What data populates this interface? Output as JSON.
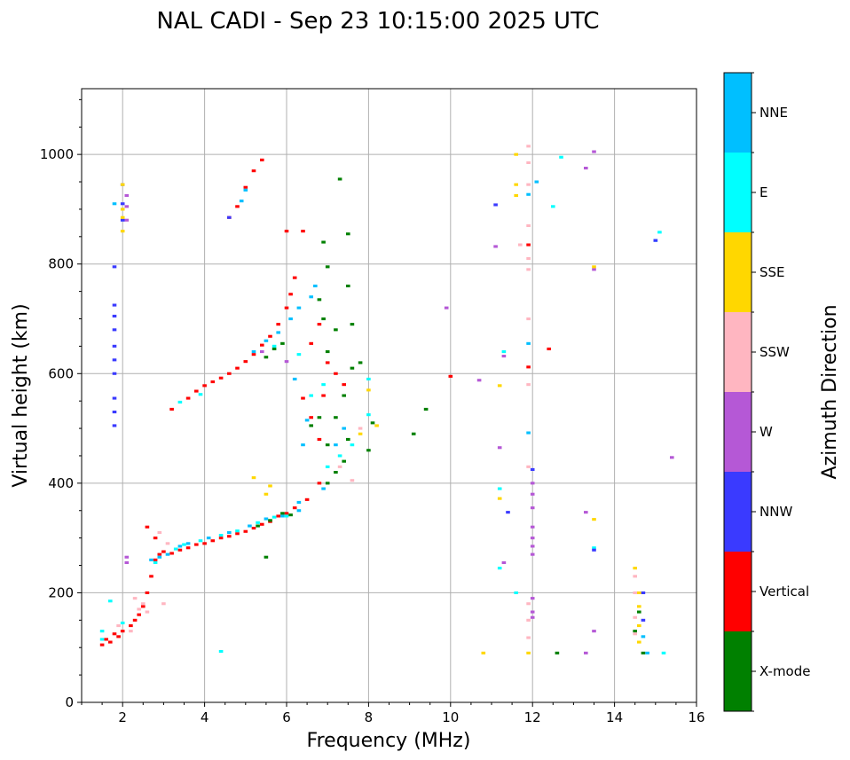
{
  "chart_data": {
    "type": "scatter",
    "title": "NAL CADI - Sep 23 10:15:00 2025 UTC",
    "xlabel": "Frequency (MHz)",
    "ylabel": "Virtual height (km)",
    "xlim": [
      1,
      16
    ],
    "ylim": [
      0,
      1120
    ],
    "xticks": [
      2,
      4,
      6,
      8,
      10,
      12,
      14,
      16
    ],
    "xtick_labels": [
      "2",
      "4",
      "6",
      "8",
      "10",
      "12",
      "14",
      "16"
    ],
    "yticks": [
      0,
      200,
      400,
      600,
      800,
      1000
    ],
    "ytick_labels": [
      "0",
      "200",
      "400",
      "600",
      "800",
      "1000"
    ],
    "grid": true,
    "cell_size": {
      "df": 0.1,
      "dh": 5
    },
    "colorbar": {
      "title": "Azimuth Direction",
      "categories": [
        {
          "label": "X-mode",
          "color": "#008000"
        },
        {
          "label": "Vertical",
          "color": "#ff0000"
        },
        {
          "label": "NNW",
          "color": "#3a3aff"
        },
        {
          "label": "W",
          "color": "#b558d6"
        },
        {
          "label": "SSW",
          "color": "#ffb6c1"
        },
        {
          "label": "SSE",
          "color": "#ffd700"
        },
        {
          "label": "E",
          "color": "#00ffff"
        },
        {
          "label": "NNE",
          "color": "#00bfff"
        }
      ]
    },
    "series": [
      {
        "name": "Vertical",
        "points": [
          [
            1.5,
            105
          ],
          [
            1.6,
            115
          ],
          [
            1.7,
            110
          ],
          [
            1.8,
            125
          ],
          [
            1.9,
            120
          ],
          [
            2.0,
            130
          ],
          [
            2.2,
            140
          ],
          [
            2.3,
            150
          ],
          [
            2.4,
            160
          ],
          [
            2.5,
            175
          ],
          [
            2.6,
            200
          ],
          [
            2.7,
            230
          ],
          [
            2.8,
            260
          ],
          [
            2.9,
            270
          ],
          [
            3.0,
            275
          ],
          [
            3.2,
            272
          ],
          [
            3.4,
            278
          ],
          [
            3.6,
            282
          ],
          [
            3.8,
            288
          ],
          [
            4.0,
            290
          ],
          [
            4.2,
            295
          ],
          [
            4.4,
            300
          ],
          [
            4.6,
            303
          ],
          [
            4.8,
            308
          ],
          [
            5.0,
            312
          ],
          [
            5.2,
            318
          ],
          [
            5.4,
            325
          ],
          [
            5.6,
            330
          ],
          [
            5.8,
            340
          ],
          [
            6.0,
            345
          ],
          [
            6.2,
            355
          ],
          [
            6.5,
            370
          ],
          [
            6.8,
            400
          ],
          [
            3.2,
            535
          ],
          [
            3.6,
            555
          ],
          [
            3.8,
            568
          ],
          [
            4.0,
            578
          ],
          [
            4.2,
            585
          ],
          [
            4.4,
            592
          ],
          [
            4.6,
            600
          ],
          [
            4.8,
            610
          ],
          [
            5.0,
            622
          ],
          [
            5.2,
            635
          ],
          [
            5.4,
            652
          ],
          [
            5.6,
            668
          ],
          [
            5.8,
            690
          ],
          [
            6.0,
            720
          ],
          [
            6.1,
            745
          ],
          [
            6.2,
            775
          ],
          [
            6.0,
            860
          ],
          [
            6.4,
            860
          ],
          [
            6.6,
            655
          ],
          [
            6.8,
            690
          ],
          [
            6.9,
            560
          ],
          [
            7.0,
            620
          ],
          [
            7.2,
            600
          ],
          [
            7.4,
            580
          ],
          [
            10.0,
            595
          ],
          [
            11.9,
            612
          ],
          [
            12.4,
            645
          ],
          [
            11.9,
            835
          ],
          [
            5.4,
            990
          ],
          [
            5.2,
            970
          ],
          [
            5.0,
            940
          ],
          [
            4.8,
            905
          ],
          [
            4.6,
            885
          ],
          [
            6.6,
            520
          ],
          [
            6.4,
            555
          ],
          [
            6.8,
            480
          ],
          [
            2.6,
            320
          ],
          [
            2.8,
            300
          ]
        ]
      },
      {
        "name": "NNE",
        "points": [
          [
            2.7,
            260
          ],
          [
            2.9,
            265
          ],
          [
            3.1,
            270
          ],
          [
            3.4,
            285
          ],
          [
            3.6,
            290
          ],
          [
            4.1,
            300
          ],
          [
            4.6,
            310
          ],
          [
            5.1,
            322
          ],
          [
            5.5,
            335
          ],
          [
            5.9,
            340
          ],
          [
            6.3,
            350
          ],
          [
            6.3,
            365
          ],
          [
            5.2,
            640
          ],
          [
            5.5,
            660
          ],
          [
            5.8,
            675
          ],
          [
            6.1,
            700
          ],
          [
            6.3,
            720
          ],
          [
            6.6,
            740
          ],
          [
            6.7,
            760
          ],
          [
            5.0,
            935
          ],
          [
            4.9,
            915
          ],
          [
            6.5,
            515
          ],
          [
            6.2,
            590
          ],
          [
            6.4,
            470
          ],
          [
            6.9,
            390
          ],
          [
            7.2,
            470
          ],
          [
            7.4,
            500
          ],
          [
            1.8,
            910
          ],
          [
            11.9,
            927
          ],
          [
            12.1,
            950
          ],
          [
            11.9,
            655
          ],
          [
            15.0,
            843
          ],
          [
            14.8,
            90
          ],
          [
            11.9,
            492
          ],
          [
            14.7,
            120
          ]
        ]
      },
      {
        "name": "E",
        "points": [
          [
            2.8,
            255
          ],
          [
            3.3,
            280
          ],
          [
            3.5,
            288
          ],
          [
            3.9,
            295
          ],
          [
            4.4,
            305
          ],
          [
            4.8,
            313
          ],
          [
            5.3,
            328
          ],
          [
            5.7,
            338
          ],
          [
            6.0,
            340
          ],
          [
            3.4,
            548
          ],
          [
            3.9,
            562
          ],
          [
            5.7,
            650
          ],
          [
            6.3,
            635
          ],
          [
            6.6,
            560
          ],
          [
            6.9,
            580
          ],
          [
            7.0,
            430
          ],
          [
            7.3,
            450
          ],
          [
            7.6,
            470
          ],
          [
            8.0,
            590
          ],
          [
            8.0,
            525
          ],
          [
            1.5,
            130
          ],
          [
            2.0,
            145
          ],
          [
            4.4,
            93
          ],
          [
            11.3,
            640
          ],
          [
            11.6,
            200
          ],
          [
            11.2,
            245
          ],
          [
            11.2,
            390
          ],
          [
            12.5,
            905
          ],
          [
            12.7,
            995
          ],
          [
            13.5,
            282
          ],
          [
            15.1,
            858
          ],
          [
            15.2,
            90
          ],
          [
            1.5,
            115
          ],
          [
            1.7,
            185
          ]
        ]
      },
      {
        "name": "X-mode",
        "points": [
          [
            6.6,
            505
          ],
          [
            6.8,
            520
          ],
          [
            7.0,
            470
          ],
          [
            7.0,
            400
          ],
          [
            7.2,
            420
          ],
          [
            7.2,
            520
          ],
          [
            7.4,
            440
          ],
          [
            7.5,
            760
          ],
          [
            7.6,
            690
          ],
          [
            7.5,
            855
          ],
          [
            7.3,
            955
          ],
          [
            6.9,
            840
          ],
          [
            7.0,
            795
          ],
          [
            7.2,
            680
          ],
          [
            7.4,
            560
          ],
          [
            7.5,
            480
          ],
          [
            7.6,
            610
          ],
          [
            7.8,
            620
          ],
          [
            8.0,
            460
          ],
          [
            8.1,
            510
          ],
          [
            9.1,
            490
          ],
          [
            9.4,
            535
          ],
          [
            7.0,
            640
          ],
          [
            6.1,
            342
          ],
          [
            5.9,
            345
          ],
          [
            5.6,
            332
          ],
          [
            5.3,
            322
          ],
          [
            5.5,
            265
          ],
          [
            12.6,
            90
          ],
          [
            14.7,
            90
          ],
          [
            14.6,
            165
          ],
          [
            14.5,
            130
          ],
          [
            6.8,
            735
          ],
          [
            6.9,
            700
          ],
          [
            5.5,
            630
          ],
          [
            5.7,
            645
          ],
          [
            5.9,
            655
          ]
        ]
      },
      {
        "name": "NNW",
        "points": [
          [
            1.8,
            505
          ],
          [
            1.8,
            530
          ],
          [
            1.8,
            555
          ],
          [
            1.8,
            600
          ],
          [
            1.8,
            625
          ],
          [
            1.8,
            650
          ],
          [
            1.8,
            680
          ],
          [
            1.8,
            705
          ],
          [
            1.8,
            725
          ],
          [
            1.8,
            795
          ],
          [
            2.0,
            910
          ],
          [
            2.0,
            880
          ],
          [
            2.0,
            945
          ],
          [
            11.4,
            347
          ],
          [
            13.5,
            278
          ],
          [
            12.0,
            425
          ],
          [
            14.7,
            200
          ],
          [
            14.7,
            150
          ],
          [
            4.6,
            885
          ],
          [
            11.1,
            908
          ],
          [
            15.0,
            843
          ]
        ]
      },
      {
        "name": "W",
        "points": [
          [
            2.1,
            255
          ],
          [
            2.1,
            265
          ],
          [
            2.1,
            880
          ],
          [
            2.1,
            905
          ],
          [
            2.1,
            925
          ],
          [
            12.0,
            400
          ],
          [
            12.0,
            380
          ],
          [
            12.0,
            355
          ],
          [
            12.0,
            320
          ],
          [
            12.0,
            300
          ],
          [
            12.0,
            285
          ],
          [
            12.0,
            270
          ],
          [
            12.0,
            190
          ],
          [
            12.0,
            165
          ],
          [
            12.0,
            155
          ],
          [
            13.3,
            975
          ],
          [
            13.5,
            1005
          ],
          [
            13.5,
            790
          ],
          [
            9.9,
            720
          ],
          [
            10.7,
            588
          ],
          [
            11.3,
            632
          ],
          [
            11.2,
            465
          ],
          [
            15.4,
            447
          ],
          [
            13.3,
            347
          ],
          [
            13.5,
            130
          ],
          [
            13.3,
            90
          ],
          [
            11.3,
            255
          ],
          [
            11.1,
            832
          ],
          [
            6.0,
            622
          ],
          [
            5.4,
            640
          ]
        ]
      },
      {
        "name": "SSE",
        "points": [
          [
            2.0,
            860
          ],
          [
            2.0,
            885
          ],
          [
            2.0,
            900
          ],
          [
            2.0,
            945
          ],
          [
            7.8,
            490
          ],
          [
            8.0,
            570
          ],
          [
            8.2,
            505
          ],
          [
            11.6,
            925
          ],
          [
            11.6,
            945
          ],
          [
            11.6,
            1000
          ],
          [
            11.9,
            90
          ],
          [
            10.8,
            90
          ],
          [
            11.2,
            578
          ],
          [
            11.2,
            372
          ],
          [
            13.5,
            334
          ],
          [
            13.5,
            795
          ],
          [
            14.6,
            175
          ],
          [
            14.6,
            200
          ],
          [
            14.5,
            245
          ],
          [
            14.6,
            140
          ],
          [
            14.6,
            110
          ],
          [
            5.2,
            410
          ],
          [
            5.5,
            380
          ],
          [
            5.6,
            395
          ]
        ]
      },
      {
        "name": "SSW",
        "points": [
          [
            2.4,
            170
          ],
          [
            2.5,
            180
          ],
          [
            2.3,
            190
          ],
          [
            2.6,
            165
          ],
          [
            3.0,
            180
          ],
          [
            2.2,
            130
          ],
          [
            1.9,
            140
          ],
          [
            11.9,
            1015
          ],
          [
            11.9,
            985
          ],
          [
            11.9,
            945
          ],
          [
            11.9,
            870
          ],
          [
            11.9,
            810
          ],
          [
            11.9,
            790
          ],
          [
            11.9,
            700
          ],
          [
            11.9,
            580
          ],
          [
            11.9,
            430
          ],
          [
            11.9,
            180
          ],
          [
            11.9,
            150
          ],
          [
            11.9,
            118
          ],
          [
            11.7,
            835
          ],
          [
            14.5,
            230
          ],
          [
            14.5,
            200
          ],
          [
            14.5,
            155
          ],
          [
            14.5,
            125
          ],
          [
            7.8,
            500
          ],
          [
            7.6,
            405
          ],
          [
            7.3,
            430
          ],
          [
            2.9,
            310
          ],
          [
            3.1,
            290
          ]
        ]
      }
    ]
  }
}
